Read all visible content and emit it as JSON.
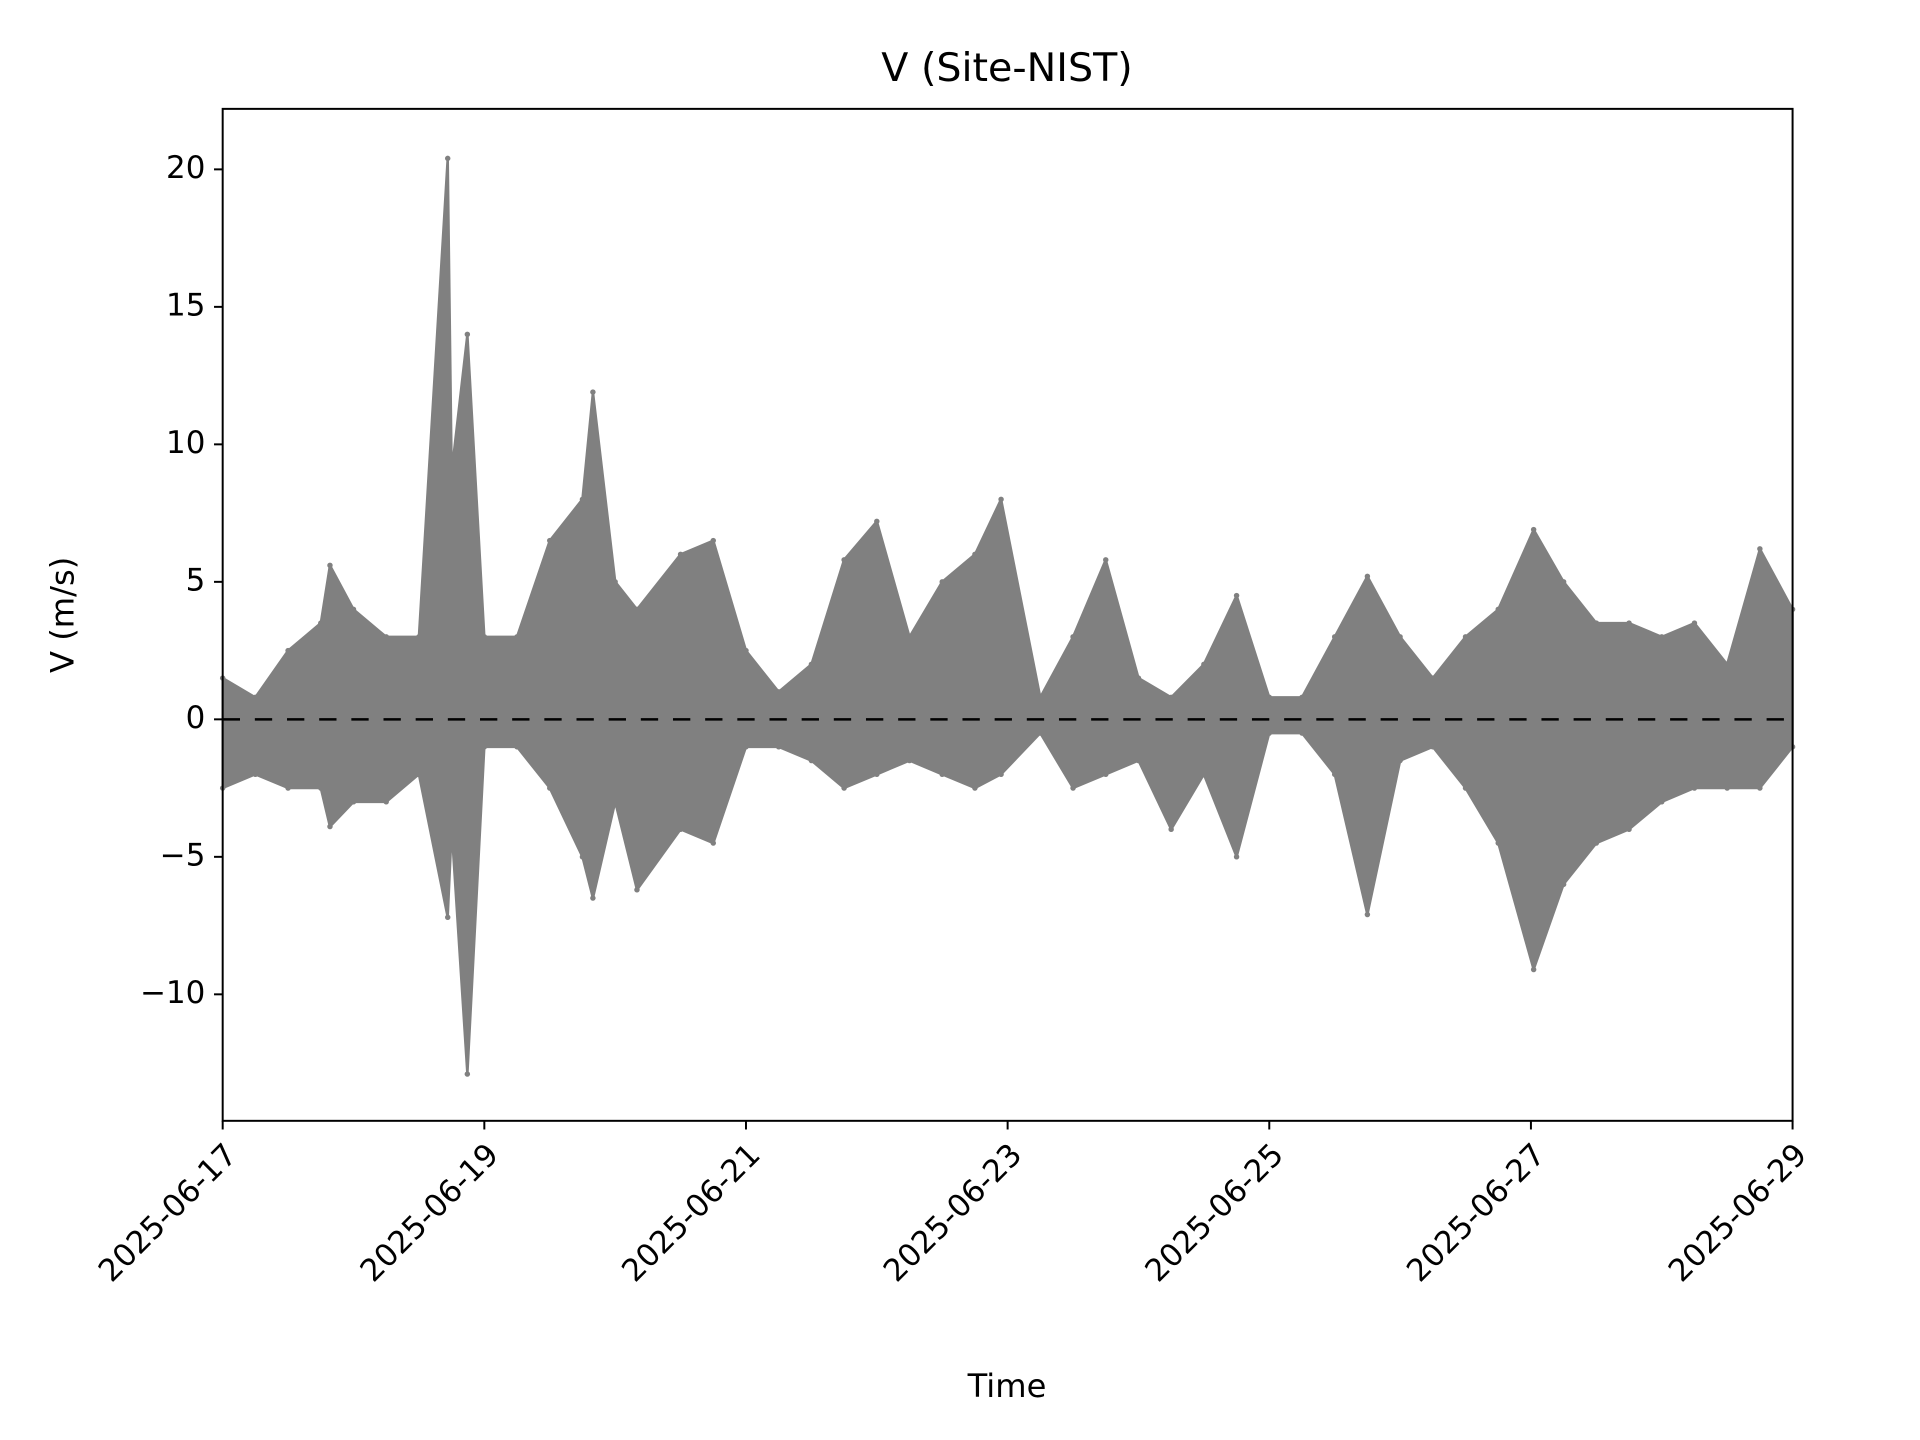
{
  "chart_data": {
    "type": "scatter",
    "title": "V (Site-NIST)",
    "x_label": "Time",
    "y_label": "V (m/s)",
    "color": "#808080",
    "x": [
      "2025-06-17T00:00",
      "2025-06-17T00:00",
      "2025-06-17T06:00",
      "2025-06-17T06:00",
      "2025-06-17T12:00",
      "2025-06-17T12:00",
      "2025-06-17T18:00",
      "2025-06-17T18:00",
      "2025-06-17T19:41",
      "2025-06-17T19:41",
      "2025-06-18T00:00",
      "2025-06-18T00:00",
      "2025-06-18T06:00",
      "2025-06-18T06:00",
      "2025-06-18T12:00",
      "2025-06-18T12:00",
      "2025-06-18T17:17",
      "2025-06-18T17:17",
      "2025-06-18T18:00",
      "2025-06-18T18:00",
      "2025-06-18T20:53",
      "2025-06-18T20:53",
      "2025-06-19T00:00",
      "2025-06-19T00:00",
      "2025-06-19T06:00",
      "2025-06-19T06:00",
      "2025-06-19T12:00",
      "2025-06-19T12:00",
      "2025-06-19T18:00",
      "2025-06-19T18:00",
      "2025-06-19T19:55",
      "2025-06-19T19:55",
      "2025-06-20T00:00",
      "2025-06-20T00:00",
      "2025-06-20T04:00",
      "2025-06-20T04:00",
      "2025-06-20T12:00",
      "2025-06-20T12:00",
      "2025-06-20T18:00",
      "2025-06-20T18:00",
      "2025-06-21T00:00",
      "2025-06-21T00:00",
      "2025-06-21T06:00",
      "2025-06-21T06:00",
      "2025-06-21T12:00",
      "2025-06-21T12:00",
      "2025-06-21T18:00",
      "2025-06-21T18:00",
      "2025-06-22T00:00",
      "2025-06-22T00:00",
      "2025-06-22T06:00",
      "2025-06-22T06:00",
      "2025-06-22T12:00",
      "2025-06-22T12:00",
      "2025-06-22T18:00",
      "2025-06-22T18:00",
      "2025-06-22T22:48",
      "2025-06-22T22:48",
      "2025-06-23T06:00",
      "2025-06-23T06:00",
      "2025-06-23T12:00",
      "2025-06-23T12:00",
      "2025-06-23T18:00",
      "2025-06-23T18:00",
      "2025-06-24T00:00",
      "2025-06-24T00:00",
      "2025-06-24T06:00",
      "2025-06-24T06:00",
      "2025-06-24T12:00",
      "2025-06-24T12:00",
      "2025-06-24T18:00",
      "2025-06-24T18:00",
      "2025-06-25T00:00",
      "2025-06-25T00:00",
      "2025-06-25T06:00",
      "2025-06-25T06:00",
      "2025-06-25T12:00",
      "2025-06-25T12:00",
      "2025-06-25T18:00",
      "2025-06-25T18:00",
      "2025-06-26T00:00",
      "2025-06-26T00:00",
      "2025-06-26T06:00",
      "2025-06-26T06:00",
      "2025-06-26T12:00",
      "2025-06-26T12:00",
      "2025-06-26T18:00",
      "2025-06-26T18:00",
      "2025-06-27T00:30",
      "2025-06-27T00:30",
      "2025-06-27T06:00",
      "2025-06-27T06:00",
      "2025-06-27T12:00",
      "2025-06-27T12:00",
      "2025-06-27T18:00",
      "2025-06-27T18:00",
      "2025-06-28T00:00",
      "2025-06-28T00:00",
      "2025-06-28T06:00",
      "2025-06-28T06:00",
      "2025-06-28T12:00",
      "2025-06-28T12:00",
      "2025-06-28T18:00",
      "2025-06-28T18:00",
      "2025-06-29T00:00",
      "2025-06-29T00:00"
    ],
    "y": [
      1.5,
      -2.5,
      0.8,
      -2,
      2.5,
      -2.5,
      3.5,
      -2.5,
      5.6,
      -3.9,
      4,
      -3,
      3,
      -3,
      3,
      -2,
      20.4,
      -7.2,
      9,
      -4,
      14,
      -12.9,
      3,
      -1,
      3,
      -1,
      6.5,
      -2.5,
      8,
      -5,
      11.9,
      -6.5,
      5,
      -3,
      4,
      -6.2,
      6,
      -4,
      6.5,
      -4.5,
      2.5,
      -1,
      1,
      -1,
      2,
      -1.5,
      5.8,
      -2.5,
      7.2,
      -2,
      3,
      -1.5,
      5,
      -2,
      6,
      -2.5,
      8,
      -2,
      0.8,
      -0.5,
      3,
      -2.5,
      5.8,
      -2,
      1.5,
      -1.5,
      0.8,
      -4,
      2,
      -2,
      4.5,
      -5,
      0.8,
      -0.5,
      0.8,
      -0.5,
      3,
      -2,
      5.2,
      -7.1,
      3,
      -1.5,
      1.5,
      -1,
      3,
      -2.5,
      4,
      -4.5,
      6.9,
      -9.1,
      5,
      -6,
      3.5,
      -4.5,
      3.5,
      -4,
      3,
      -3,
      3.5,
      -2.5,
      2,
      -2.5,
      6.2,
      -2.5,
      4,
      -1
    ],
    "hline": 0,
    "xlim": [
      "2025-06-17",
      "2025-06-29"
    ],
    "xticks": [
      "2025-06-17",
      "2025-06-19",
      "2025-06-21",
      "2025-06-23",
      "2025-06-25",
      "2025-06-27",
      "2025-06-29"
    ],
    "ylim": [
      -14.6,
      22.2
    ],
    "yticks": [
      {
        "value": -10,
        "label": "−10"
      },
      {
        "value": -5,
        "label": "−5"
      },
      0,
      5,
      10,
      15,
      20
    ],
    "grid": false
  }
}
